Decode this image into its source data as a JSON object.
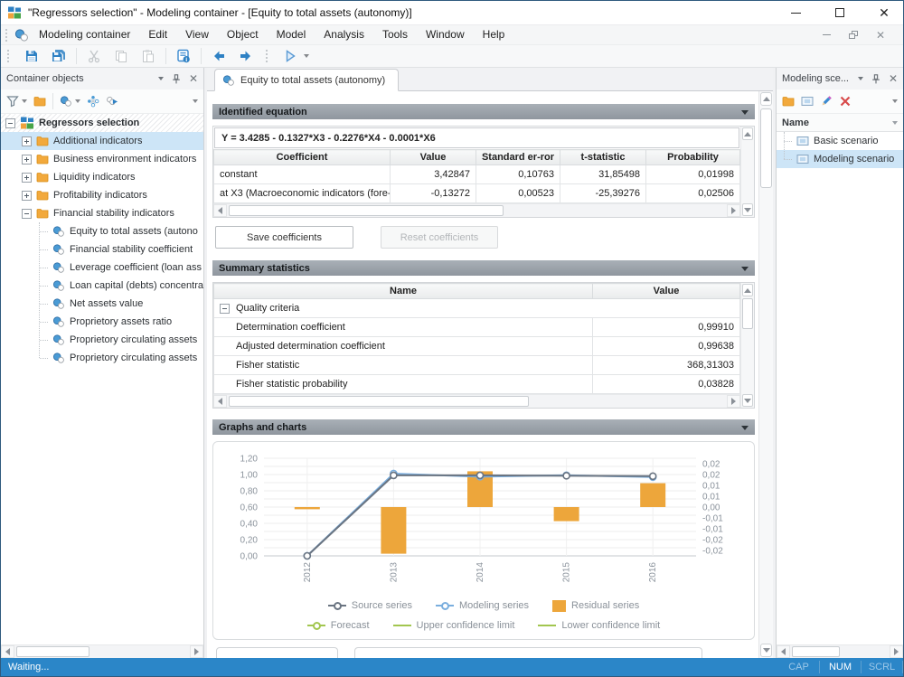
{
  "window": {
    "title": "\"Regressors selection\" - Modeling container - [Equity to total assets (autonomy)]"
  },
  "menu": {
    "items": [
      "Modeling container",
      "Edit",
      "View",
      "Object",
      "Model",
      "Analysis",
      "Tools",
      "Window",
      "Help"
    ]
  },
  "left_panel": {
    "title": "Container objects",
    "tree": {
      "root": "Regressors selection",
      "folders": [
        "Additional indicators",
        "Business environment indicators",
        "Liquidity indicators",
        "Profitability indicators",
        "Financial stability indicators"
      ],
      "leaves": [
        "Equity to total assets (autono",
        "Financial stability coefficient",
        "Leverage coefficient (loan ass",
        "Loan capital (debts) concentra",
        "Net assets value",
        "Proprietory assets ratio",
        "Proprietory circulating assets",
        "Proprietory circulating assets"
      ]
    }
  },
  "tab": {
    "label": "Equity to total assets (autonomy)"
  },
  "identified_equation": {
    "title": "Identified equation",
    "equation": "Y = 3.4285 - 0.1327*X3 - 0.2276*X4 - 0.0001*X6",
    "headers": [
      "Coefficient",
      "Value",
      "Standard er-ror",
      "t-statistic",
      "Probability"
    ],
    "rows": [
      {
        "name": "constant",
        "value": "3,42847",
        "std_error": "0,10763",
        "t_stat": "31,85498",
        "probability": "0,01998"
      },
      {
        "name": "at X3 (Macroeconomic indicators (fore-",
        "value": "-0,13272",
        "std_error": "0,00523",
        "t_stat": "-25,39276",
        "probability": "0,02506"
      }
    ],
    "save_button": "Save coefficients",
    "reset_button": "Reset coefficients"
  },
  "summary_statistics": {
    "title": "Summary statistics",
    "headers": [
      "Name",
      "Value"
    ],
    "group": "Quality criteria",
    "rows": [
      {
        "name": "Determination coefficient",
        "value": "0,99910"
      },
      {
        "name": "Adjusted determination coefficient",
        "value": "0,99638"
      },
      {
        "name": "Fisher statistic",
        "value": "368,31303"
      },
      {
        "name": "Fisher statistic probability",
        "value": "0,03828"
      }
    ]
  },
  "graphs": {
    "title": "Graphs and charts"
  },
  "chart_data": {
    "type": "combo",
    "categories": [
      "2012",
      "2013",
      "2014",
      "2015",
      "2016"
    ],
    "series": [
      {
        "name": "Source series",
        "type": "line",
        "axis": "left",
        "color": "#6a7481",
        "values": [
          0.0,
          0.99,
          0.99,
          0.985,
          0.98
        ]
      },
      {
        "name": "Modeling series",
        "type": "line",
        "axis": "left",
        "color": "#7aaede",
        "values": [
          0.001,
          1.0115,
          0.9735,
          0.9915,
          0.969
        ]
      },
      {
        "name": "Residual series",
        "type": "bar",
        "axis": "right",
        "color": "#eda63b",
        "values": [
          -0.001,
          -0.0215,
          0.0165,
          -0.0065,
          0.011
        ]
      }
    ],
    "legend_extra": [
      {
        "name": "Forecast",
        "type": "line-marker",
        "color": "#a2c64f"
      },
      {
        "name": "Upper confidence limit",
        "type": "line",
        "color": "#a2c64f"
      },
      {
        "name": "Lower confidence limit",
        "type": "line",
        "color": "#a2c64f"
      }
    ],
    "left_axis": {
      "min": 0,
      "max": 1.2,
      "step": 0.2,
      "labels": [
        "0,00",
        "0,20",
        "0,40",
        "0,60",
        "0,80",
        "1,00",
        "1,20"
      ]
    },
    "right_axis": {
      "min": -0.0225,
      "max": 0.0225,
      "step": 0.005,
      "labels": [
        "0,02",
        "0,02",
        "0,01",
        "0,01",
        "0,00",
        "-0,01",
        "-0,01",
        "-0,02",
        "-0,02"
      ]
    },
    "grid": true,
    "legend_position": "bottom"
  },
  "right_panel": {
    "title": "Modeling sce...",
    "column_header": "Name",
    "items": [
      {
        "label": "Basic scenario"
      },
      {
        "label": "Modeling scenario"
      }
    ]
  },
  "status_bar": {
    "text": "Waiting...",
    "indicators": [
      {
        "label": "CAP",
        "active": false
      },
      {
        "label": "NUM",
        "active": true
      },
      {
        "label": "SCRL",
        "active": false
      }
    ]
  },
  "colors": {
    "accent_blue": "#2e81c4",
    "status_bar_blue": "#2b86c8",
    "selection_blue": "#cde5f7",
    "section_header_gray": "#9aa1a9",
    "bar_orange": "#eda63b",
    "source_line": "#6a7481",
    "modeling_line": "#7aaede",
    "forecast_green": "#a2c64f"
  }
}
